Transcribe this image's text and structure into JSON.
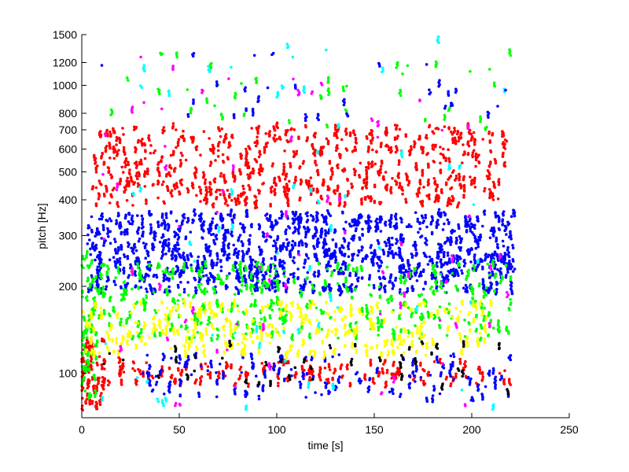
{
  "chart_data": {
    "type": "scatter",
    "title": "",
    "xlabel": "time [s]",
    "ylabel": "pitch [Hz]",
    "xlim": [
      0,
      250
    ],
    "ylim": [
      70,
      1500
    ],
    "yscale": "log",
    "grid": false,
    "legend": "none",
    "x_ticks": [
      0,
      50,
      100,
      150,
      200,
      250
    ],
    "x_tick_labels": [
      "0",
      "50",
      "100",
      "150",
      "200",
      "250"
    ],
    "y_ticks": [
      100,
      200,
      300,
      400,
      500,
      600,
      700,
      800,
      1000,
      1200,
      1500
    ],
    "y_tick_labels": [
      "100",
      "200",
      "300",
      "400",
      "500",
      "600",
      "700",
      "800",
      "1000",
      "1200",
      "1500"
    ],
    "marker_colors": [
      "#ff0000",
      "#0000ff",
      "#00ff00",
      "#ffff00",
      "#00ffff",
      "#ff00ff",
      "#000000"
    ],
    "point_clusters": [
      {
        "color": "#ff0000",
        "x_range": [
          5,
          218
        ],
        "y_range": [
          380,
          720
        ],
        "density": 520
      },
      {
        "color": "#ff0000",
        "x_range": [
          0,
          12
        ],
        "y_range": [
          75,
          130
        ],
        "density": 60
      },
      {
        "color": "#ff0000",
        "x_range": [
          10,
          220
        ],
        "y_range": [
          90,
          110
        ],
        "density": 140
      },
      {
        "color": "#0000ff",
        "x_range": [
          3,
          222
        ],
        "y_range": [
          190,
          360
        ],
        "density": 900
      },
      {
        "color": "#0000ff",
        "x_range": [
          30,
          220
        ],
        "y_range": [
          80,
          115
        ],
        "density": 120
      },
      {
        "color": "#00ff00",
        "x_range": [
          2,
          220
        ],
        "y_range": [
          130,
          240
        ],
        "density": 350
      },
      {
        "color": "#00ff00",
        "x_range": [
          0,
          8
        ],
        "y_range": [
          80,
          260
        ],
        "density": 70
      },
      {
        "color": "#ffff00",
        "x_range": [
          0,
          210
        ],
        "y_range": [
          115,
          175
        ],
        "density": 300
      },
      {
        "color": "#00ffff",
        "x_range": [
          10,
          220
        ],
        "y_range": [
          75,
          1450
        ],
        "density": 60
      },
      {
        "color": "#ff00ff",
        "x_range": [
          10,
          220
        ],
        "y_range": [
          75,
          1300
        ],
        "density": 70
      },
      {
        "color": "#000000",
        "x_range": [
          10,
          220
        ],
        "y_range": [
          85,
          130
        ],
        "density": 40
      },
      {
        "color": "#00ff00",
        "x_range": [
          10,
          220
        ],
        "y_range": [
          700,
          1300
        ],
        "density": 40
      },
      {
        "color": "#0000ff",
        "x_range": [
          10,
          220
        ],
        "y_range": [
          750,
          1300
        ],
        "density": 30
      }
    ]
  }
}
